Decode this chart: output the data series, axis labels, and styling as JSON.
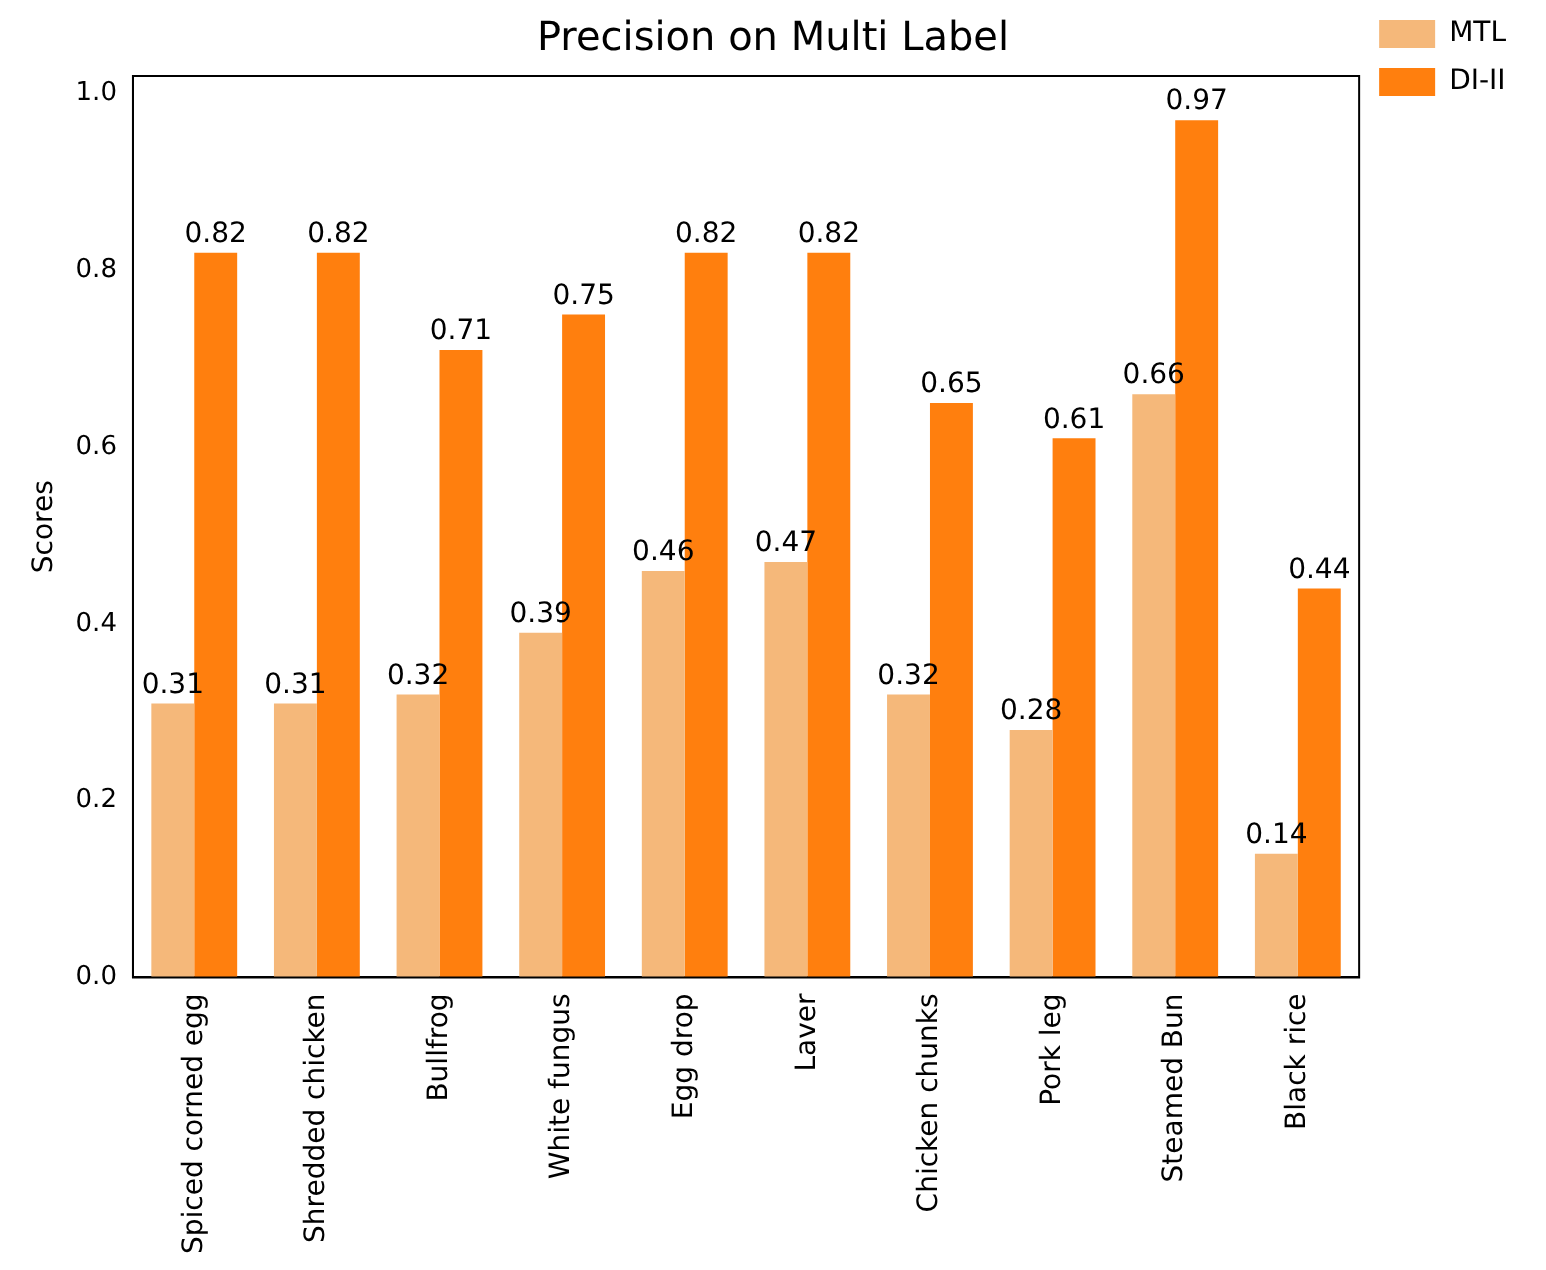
{
  "chart_data": {
    "type": "bar",
    "title": "Precision on Multi Label",
    "ylabel": "Scores",
    "categories": [
      "Spiced corned egg",
      "Shredded chicken",
      "Bullfrog",
      "White fungus",
      "Egg drop",
      "Laver",
      "Chicken chunks",
      "Pork leg",
      "Steamed Bun",
      "Black rice"
    ],
    "series": [
      {
        "name": "MTL",
        "color": "#f5b87a",
        "values": [
          0.31,
          0.31,
          0.32,
          0.39,
          0.46,
          0.47,
          0.32,
          0.28,
          0.66,
          0.14
        ]
      },
      {
        "name": "DI-II",
        "color": "#ff7f0e",
        "values": [
          0.82,
          0.82,
          0.71,
          0.75,
          0.82,
          0.82,
          0.65,
          0.61,
          0.97,
          0.44
        ]
      }
    ],
    "ylim": [
      0,
      1.02
    ],
    "yticks": [
      {
        "value": 0,
        "label": "0.0"
      },
      {
        "value": 0.2,
        "label": "0.2"
      },
      {
        "value": 0.4,
        "label": "0.4"
      },
      {
        "value": 0.6,
        "label": "0.6"
      },
      {
        "value": 0.8,
        "label": "0.8"
      },
      {
        "value": 1,
        "label": "1.0"
      }
    ],
    "grid": false,
    "legend": "top right",
    "data_labels": true
  }
}
